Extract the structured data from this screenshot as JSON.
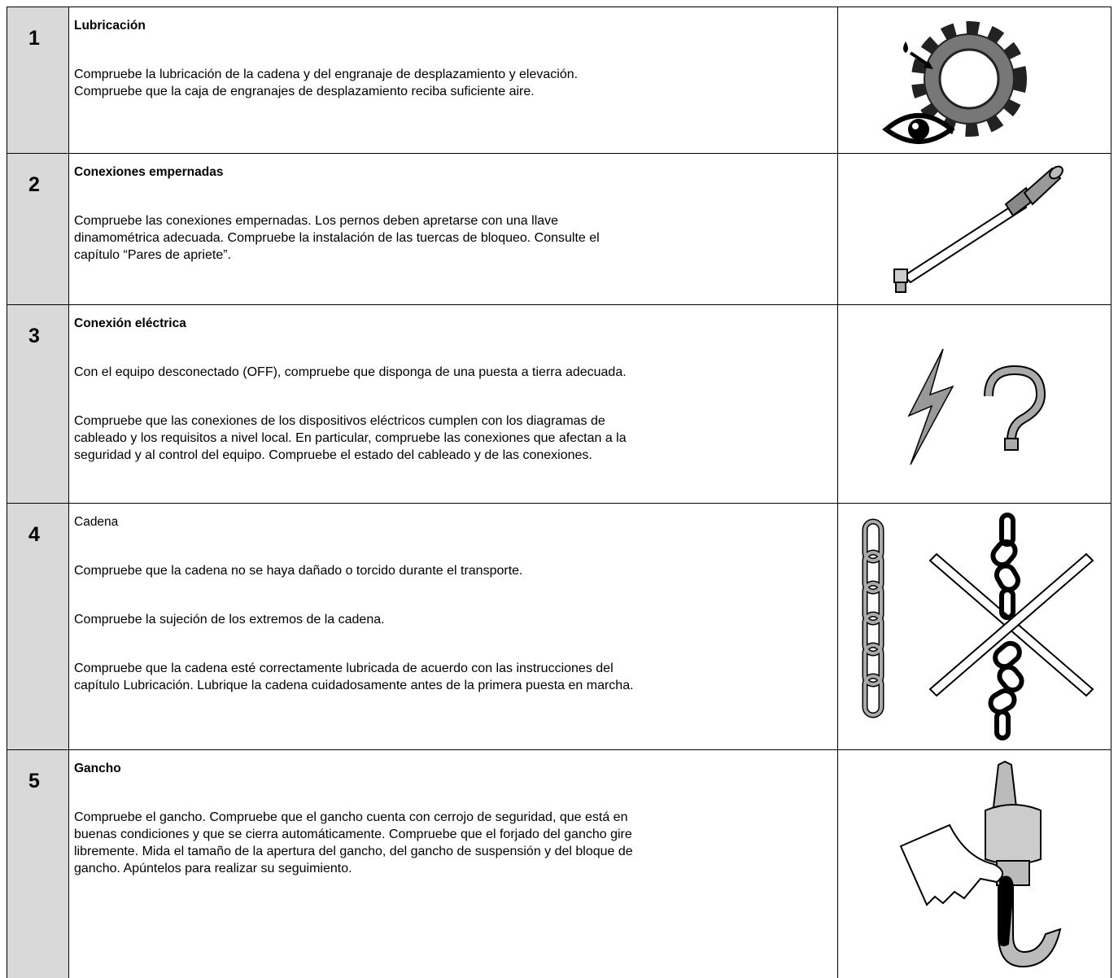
{
  "rows": [
    {
      "number": "1",
      "title": "Lubricación",
      "bold": true,
      "paragraphs": [
        [
          "Compruebe la lubricación de la cadena y del engranaje de desplazamiento y elevación.",
          "Compruebe que la caja de engranajes de desplazamiento reciba suficiente aire."
        ]
      ]
    },
    {
      "number": "2",
      "title": "Conexiones empernadas",
      "bold": true,
      "paragraphs": [
        [
          "Compruebe las conexiones empernadas. Los pernos deben apretarse con una llave",
          "dinamométrica adecuada. Compruebe la instalación de las tuercas de bloqueo. Consulte el",
          "capítulo “Pares de apriete”."
        ]
      ]
    },
    {
      "number": "3",
      "title": "Conexión eléctrica",
      "bold": true,
      "paragraphs": [
        [
          "Con el equipo desconectado (OFF), compruebe que disponga de una puesta a tierra adecuada."
        ],
        [
          "Compruebe que las conexiones de los dispositivos eléctricos cumplen con los diagramas de",
          "cableado y los requisitos a nivel local. En particular, compruebe las conexiones que afectan a la",
          "seguridad y al control del equipo. Compruebe el estado del cableado y de las conexiones."
        ]
      ]
    },
    {
      "number": "4",
      "title": "Cadena",
      "bold": false,
      "paragraphs": [
        [
          "Compruebe que la cadena no se haya dañado o torcido durante el transporte."
        ],
        [
          "Compruebe la sujeción de los extremos de la cadena."
        ],
        [
          "Compruebe que la cadena esté correctamente lubricada de acuerdo con las instrucciones del",
          "capítulo Lubricación. Lubrique la cadena cuidadosamente antes de la primera puesta en marcha."
        ]
      ]
    },
    {
      "number": "5",
      "title": "Gancho",
      "bold": true,
      "paragraphs": [
        [
          "Compruebe el gancho. Compruebe que el gancho cuenta con cerrojo de seguridad, que está en",
          "buenas condiciones y que se cierra automáticamente. Compruebe que el forjado del gancho gire",
          "libremente. Mida el tamaño de la apertura del gancho, del gancho de suspensión y del bloque de",
          "gancho. Apúntelos para realizar su seguimiento."
        ]
      ]
    }
  ]
}
